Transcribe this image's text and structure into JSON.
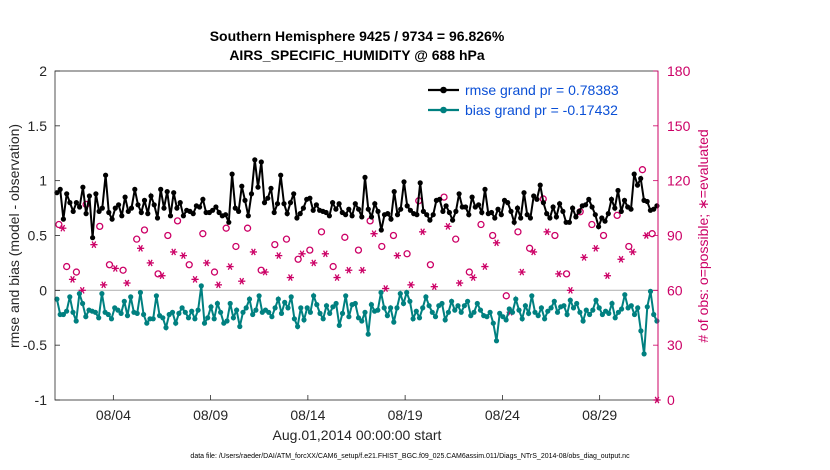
{
  "chart_data": {
    "type": "line",
    "title_line1": "Southern Hemisphere 9425 / 9734 = 96.826%",
    "title_line2": "AIRS_SPECIFIC_HUMIDITY @ 688 hPa",
    "ylabel_left": "rmse and bias (model - observation)",
    "ylabel_right": "# of obs: o=possible; ∗=evaluated",
    "xlabel": "Aug.01,2014 00:00:00 start",
    "footnote": "data file: /Users/raeder/DAI/ATM_forcXX/CAM6_setup/f.e21.FHIST_BGC.f09_025.CAM6assim.011/Diags_NTrS_2014-08/obs_diag_output.nc",
    "ylim_left": [
      -1,
      2
    ],
    "ylim_right": [
      0,
      180
    ],
    "xlim": [
      1,
      32
    ],
    "yticks_left": [
      "-1",
      "-0.5",
      "0",
      "0.5",
      "1",
      "1.5",
      "2"
    ],
    "yticks_right": [
      "0",
      "30",
      "60",
      "90",
      "120",
      "150",
      "180"
    ],
    "xticks": [
      {
        "day": 4,
        "label": "08/04"
      },
      {
        "day": 9,
        "label": "08/09"
      },
      {
        "day": 14,
        "label": "08/14"
      },
      {
        "day": 19,
        "label": "08/19"
      },
      {
        "day": 24,
        "label": "08/24"
      },
      {
        "day": 29,
        "label": "08/29"
      }
    ],
    "series": [
      {
        "name": "rmse",
        "legend": "rmse grand pr = 0.78383",
        "color": "#000000",
        "values": [
          0.89,
          0.92,
          0.65,
          0.88,
          0.8,
          0.72,
          0.8,
          0.76,
          0.94,
          0.7,
          0.86,
          0.48,
          0.88,
          0.72,
          0.75,
          1.05,
          0.71,
          0.65,
          0.75,
          0.78,
          0.68,
          0.85,
          0.72,
          0.75,
          0.92,
          0.78,
          0.71,
          0.82,
          0.7,
          0.86,
          0.78,
          0.66,
          0.92,
          0.75,
          0.9,
          0.68,
          0.89,
          0.75,
          0.8,
          0.68,
          0.73,
          0.72,
          0.7,
          0.77,
          0.76,
          0.83,
          0.71,
          0.71,
          0.73,
          0.76,
          0.71,
          0.68,
          0.69,
          0.62,
          1.06,
          0.75,
          0.72,
          0.95,
          0.82,
          0.68,
          0.88,
          1.19,
          0.94,
          1.17,
          0.8,
          0.84,
          0.93,
          0.71,
          0.79,
          1.05,
          0.79,
          0.7,
          0.8,
          0.88,
          0.66,
          0.7,
          0.75,
          0.83,
          0.84,
          0.73,
          0.78,
          0.73,
          0.72,
          0.71,
          0.68,
          0.8,
          0.74,
          0.79,
          0.71,
          0.69,
          0.74,
          0.68,
          0.79,
          0.74,
          0.67,
          1.03,
          0.74,
          0.67,
          0.79,
          0.72,
          0.55,
          0.69,
          0.7,
          0.65,
          0.9,
          0.69,
          0.74,
          0.99,
          0.77,
          0.73,
          0.7,
          0.69,
          0.98,
          0.72,
          0.69,
          0.64,
          0.69,
          0.82,
          0.83,
          0.72,
          0.77,
          0.71,
          0.64,
          0.72,
          0.88,
          0.76,
          0.76,
          0.69,
          0.85,
          0.76,
          0.78,
          0.71,
          0.92,
          0.7,
          0.71,
          0.66,
          0.74,
          0.69,
          0.82,
          0.8,
          0.72,
          0.62,
          0.75,
          0.66,
          0.89,
          0.69,
          0.66,
          0.86,
          0.83,
          0.96,
          0.8,
          0.7,
          0.66,
          0.76,
          0.67,
          0.79,
          0.72,
          0.62,
          0.62,
          0.75,
          0.67,
          0.72,
          0.77,
          0.78,
          0.83,
          0.76,
          0.69,
          0.58,
          0.66,
          0.63,
          0.7,
          0.83,
          0.75,
          0.91,
          0.72,
          0.82,
          0.76,
          0.74,
          1.06,
          0.96,
          1.02,
          0.82,
          0.81,
          0.73,
          0.74,
          0.77
        ]
      },
      {
        "name": "bias",
        "legend": "bias grand pr = -0.17432",
        "color": "#008080",
        "values": [
          -0.08,
          -0.22,
          -0.22,
          -0.19,
          -0.06,
          -0.2,
          -0.28,
          -0.03,
          -0.12,
          -0.24,
          -0.18,
          -0.19,
          -0.2,
          -0.25,
          -0.03,
          -0.2,
          -0.22,
          -0.26,
          -0.16,
          -0.18,
          -0.21,
          -0.1,
          -0.23,
          -0.06,
          -0.2,
          -0.21,
          -0.02,
          -0.22,
          -0.3,
          -0.26,
          -0.26,
          -0.05,
          -0.23,
          -0.25,
          -0.34,
          -0.22,
          -0.2,
          -0.3,
          -0.21,
          -0.16,
          -0.2,
          -0.25,
          -0.19,
          -0.26,
          -0.18,
          0.04,
          -0.3,
          -0.25,
          -0.15,
          -0.26,
          -0.12,
          -0.2,
          -0.3,
          -0.28,
          -0.12,
          -0.25,
          -0.18,
          -0.33,
          -0.2,
          -0.16,
          -0.08,
          -0.22,
          -0.18,
          -0.05,
          -0.2,
          -0.18,
          -0.2,
          -0.24,
          -0.16,
          -0.08,
          -0.21,
          -0.11,
          -0.16,
          -0.06,
          -0.26,
          -0.33,
          -0.16,
          -0.27,
          -0.16,
          -0.2,
          -0.05,
          -0.13,
          -0.21,
          -0.26,
          -0.14,
          -0.21,
          -0.15,
          -0.12,
          -0.32,
          -0.21,
          -0.05,
          -0.24,
          -0.13,
          -0.12,
          -0.25,
          -0.28,
          -0.2,
          -0.4,
          -0.13,
          -0.19,
          -0.18,
          -0.02,
          -0.16,
          -0.23,
          -0.16,
          -0.29,
          -0.16,
          -0.03,
          -0.12,
          -0.02,
          -0.1,
          -0.26,
          -0.19,
          -0.25,
          -0.16,
          -0.06,
          -0.14,
          -0.2,
          -0.24,
          -0.14,
          -0.12,
          -0.27,
          -0.2,
          -0.1,
          -0.18,
          -0.14,
          -0.2,
          -0.14,
          -0.1,
          -0.23,
          -0.2,
          -0.12,
          -0.18,
          -0.23,
          -0.24,
          -0.2,
          -0.3,
          -0.46,
          -0.21,
          -0.24,
          -0.27,
          -0.17,
          -0.2,
          -0.08,
          -0.18,
          -0.26,
          -0.14,
          -0.21,
          -0.05,
          -0.2,
          -0.23,
          -0.16,
          -0.26,
          -0.19,
          -0.16,
          -0.1,
          -0.2,
          -0.15,
          -0.14,
          -0.22,
          -0.09,
          -0.16,
          -0.12,
          -0.2,
          -0.28,
          -0.18,
          -0.22,
          -0.18,
          -0.09,
          -0.16,
          -0.22,
          -0.19,
          -0.21,
          -0.12,
          -0.25,
          -0.2,
          -0.17,
          -0.04,
          -0.16,
          -0.14,
          -0.22,
          -0.16,
          -0.37,
          -0.58,
          -0.15,
          -0.01,
          -0.22,
          -0.28
        ]
      },
      {
        "name": "obs_possible",
        "color": "#cc0066",
        "marker": "circle",
        "x": [
          1.2,
          1.6,
          2.1,
          2.6,
          3.3,
          3.8,
          4.5,
          5.2,
          5.6,
          6.3,
          6.8,
          7.3,
          7.9,
          8.6,
          9.2,
          9.8,
          10.3,
          10.9,
          11.6,
          12.3,
          12.9,
          13.5,
          14.1,
          14.7,
          15.3,
          15.9,
          16.6,
          17.2,
          17.8,
          18.4,
          19.1,
          19.7,
          20.3,
          21.0,
          21.6,
          22.3,
          22.9,
          23.5,
          24.2,
          24.8,
          25.4,
          26.1,
          26.7,
          27.3,
          28.0,
          28.6,
          29.2,
          29.9,
          30.5,
          31.2,
          31.7
        ],
        "values": [
          96,
          73,
          70,
          107,
          95,
          74,
          71,
          88,
          93,
          69,
          90,
          98,
          74,
          91,
          70,
          94,
          84,
          94,
          71,
          85,
          88,
          77,
          82,
          92,
          73,
          89,
          82,
          98,
          84,
          90,
          80,
          109,
          74,
          111,
          88,
          70,
          96,
          90,
          57,
          92,
          83,
          110,
          90,
          69,
          103,
          96,
          90,
          101,
          84,
          126,
          91
        ]
      },
      {
        "name": "obs_evaluated",
        "color": "#cc0066",
        "marker": "asterisk",
        "x": [
          1.4,
          1.9,
          2.4,
          3.0,
          3.5,
          4.1,
          4.7,
          5.4,
          5.9,
          6.5,
          7.1,
          7.6,
          8.2,
          8.8,
          9.4,
          10.0,
          10.6,
          11.2,
          11.8,
          12.5,
          13.1,
          13.7,
          14.3,
          14.9,
          15.5,
          16.1,
          16.8,
          17.4,
          18.0,
          18.6,
          19.3,
          19.9,
          20.5,
          21.2,
          21.8,
          22.5,
          23.1,
          23.7,
          24.4,
          25.0,
          25.6,
          26.3,
          26.9,
          27.5,
          28.2,
          28.8,
          29.4,
          30.1,
          30.7,
          31.4,
          31.95
        ],
        "values": [
          94,
          66,
          60,
          85,
          63,
          72,
          64,
          83,
          75,
          68,
          81,
          79,
          66,
          75,
          63,
          73,
          65,
          81,
          70,
          79,
          67,
          80,
          75,
          80,
          67,
          71,
          71,
          91,
          61,
          79,
          63,
          92,
          62,
          95,
          64,
          67,
          73,
          86,
          48,
          70,
          81,
          92,
          69,
          60,
          78,
          83,
          68,
          77,
          81,
          90,
          0
        ]
      }
    ],
    "zero_line_color": "#b8b8b8"
  }
}
